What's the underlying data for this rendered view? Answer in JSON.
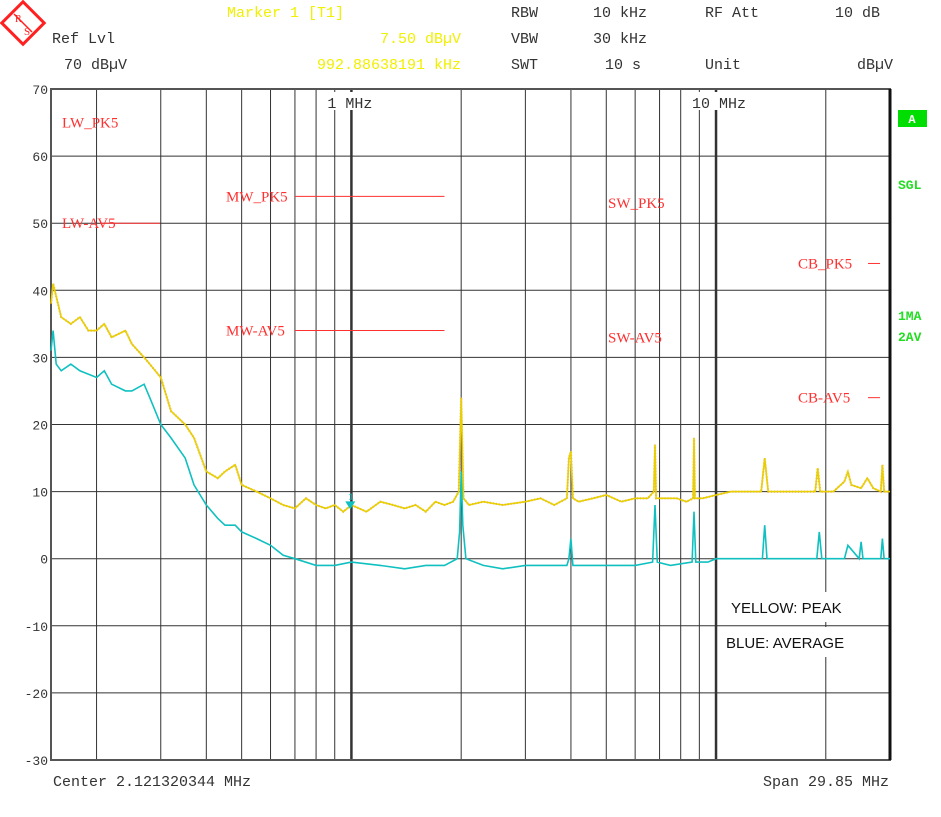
{
  "header": {
    "marker_title": "Marker 1 [T1]",
    "ref_lvl_label": "Ref Lvl",
    "ref_lvl_value": "70 dBµV",
    "marker_level": "7.50 dBµV",
    "marker_freq": "992.88638191 kHz",
    "rbw_label": "RBW",
    "rbw_value": "10 kHz",
    "vbw_label": "VBW",
    "vbw_value": "30 kHz",
    "swt_label": "SWT",
    "swt_value": "10 s",
    "rfatt_label": "RF Att",
    "rfatt_value": "10 dB",
    "unit_label": "Unit",
    "unit_value": "dBµV"
  },
  "side": {
    "screen": "A",
    "sweep": "SGL",
    "trace1": "1MA",
    "trace2": "2AV",
    "screen_color": "#00dd00"
  },
  "footer": {
    "center": "Center 2.121320344 MHz",
    "span": "Span 29.85 MHz"
  },
  "legend": {
    "peak": "YELLOW: PEAK",
    "average": "BLUE: AVERAGE"
  },
  "chart_data": {
    "type": "line",
    "x_scale": "log",
    "xlim_mhz": [
      0.15,
      30
    ],
    "ylim": [
      -30,
      70
    ],
    "grid": true,
    "y_ticks": [
      "70",
      "60",
      "50",
      "40",
      "30",
      "20",
      "10",
      "0",
      "-10",
      "-20",
      "-30"
    ],
    "x_tick_labels": [
      {
        "freq": 1,
        "label": "1 MHz"
      },
      {
        "freq": 10,
        "label": "10 MHz"
      }
    ],
    "colors": {
      "peak": "#e8d000",
      "average": "#10c0c0",
      "limit": "#ff3030",
      "grid": "#333333"
    },
    "marker": {
      "label": "1",
      "freq_mhz": 0.99288638191,
      "level": 7.5
    },
    "limit_lines": [
      {
        "label": "LW_PK5",
        "level": 65
      },
      {
        "label": "LW-AV5",
        "level": 50
      },
      {
        "label": "MW_PK5",
        "level": 54,
        "from_mhz": 0.7,
        "to_mhz": 1.8
      },
      {
        "label": "MW-AV5",
        "level": 34,
        "from_mhz": 0.7,
        "to_mhz": 1.8
      },
      {
        "label": "SW_PK5",
        "level": 53
      },
      {
        "label": "SW-AV5",
        "level": 33
      },
      {
        "label": "CB_PK5",
        "level": 44
      },
      {
        "label": "CB-AV5",
        "level": 24
      }
    ],
    "series": [
      {
        "key": "peak",
        "x": [
          0.15,
          0.152,
          0.16,
          0.17,
          0.18,
          0.19,
          0.2,
          0.21,
          0.22,
          0.24,
          0.25,
          0.27,
          0.28,
          0.3,
          0.32,
          0.35,
          0.37,
          0.4,
          0.43,
          0.45,
          0.48,
          0.5,
          0.55,
          0.6,
          0.65,
          0.7,
          0.75,
          0.8,
          0.85,
          0.9,
          0.95,
          1.0,
          1.1,
          1.2,
          1.3,
          1.4,
          1.5,
          1.6,
          1.7,
          1.8,
          1.9,
          1.97,
          2.0,
          2.03,
          2.1,
          2.3,
          2.6,
          3.0,
          3.3,
          3.6,
          3.9,
          3.95,
          4.0,
          4.05,
          4.2,
          4.6,
          5.0,
          5.5,
          6.0,
          6.5,
          6.75,
          6.8,
          6.85,
          7.2,
          7.8,
          8.3,
          8.65,
          8.7,
          8.75,
          9.2,
          10,
          11,
          12,
          13.3,
          13.6,
          13.9,
          15,
          17,
          18.7,
          19.0,
          19.3,
          21,
          22.5,
          23,
          23.5,
          25,
          26,
          27,
          28.3,
          28.6,
          28.9,
          30
        ],
        "y": [
          38,
          41,
          36,
          35,
          36,
          34,
          34,
          35,
          33,
          34,
          32,
          30,
          29,
          27,
          22,
          20,
          18,
          13,
          12,
          13,
          14,
          11,
          10,
          9,
          8,
          7.5,
          9,
          8,
          7.5,
          8,
          7,
          8,
          7,
          8.5,
          8,
          7.5,
          8,
          7,
          8.5,
          8,
          8.5,
          10,
          24,
          9,
          8,
          8.5,
          8,
          8.5,
          9,
          8,
          9,
          15,
          16,
          9,
          8.5,
          9,
          9.5,
          8.5,
          9,
          9,
          10,
          17,
          9,
          9,
          9,
          8.5,
          9,
          18,
          9,
          9,
          9.5,
          10,
          10,
          10,
          15,
          10,
          10,
          10,
          10,
          13.5,
          10,
          10,
          11.5,
          13,
          11,
          10.5,
          12,
          10.5,
          10,
          14,
          10,
          10
        ]
      },
      {
        "key": "average",
        "x": [
          0.15,
          0.152,
          0.155,
          0.16,
          0.17,
          0.18,
          0.2,
          0.21,
          0.22,
          0.24,
          0.25,
          0.27,
          0.28,
          0.3,
          0.32,
          0.35,
          0.37,
          0.4,
          0.43,
          0.45,
          0.48,
          0.5,
          0.55,
          0.6,
          0.65,
          0.7,
          0.8,
          0.9,
          1.0,
          1.2,
          1.4,
          1.6,
          1.8,
          1.95,
          1.98,
          2.0,
          2.02,
          2.06,
          2.3,
          2.6,
          3.0,
          3.5,
          3.9,
          3.95,
          4.0,
          4.05,
          4.2,
          5,
          6,
          6.7,
          6.8,
          6.9,
          7.5,
          8.6,
          8.7,
          8.8,
          9.5,
          10,
          11,
          12,
          13.4,
          13.6,
          13.8,
          15,
          17,
          18.9,
          19.2,
          19.5,
          21,
          22.5,
          23,
          24.7,
          25,
          25.3,
          27,
          28.3,
          28.6,
          28.9,
          30
        ],
        "y": [
          31,
          34,
          29,
          28,
          29,
          28,
          27,
          28,
          26,
          25,
          25,
          26,
          24,
          20,
          18,
          15,
          11,
          8,
          6,
          5,
          5,
          4,
          3,
          2,
          0.5,
          0,
          -1,
          -1,
          -0.5,
          -1,
          -1.5,
          -1,
          -1,
          0,
          4,
          13,
          5,
          0,
          -1,
          -1.5,
          -1,
          -1,
          -1,
          0,
          3,
          -1,
          -1,
          -1,
          -1,
          -0.5,
          8,
          -0.5,
          -1,
          -0.5,
          7,
          -0.5,
          -0.5,
          0,
          0,
          0,
          0,
          5,
          0,
          0,
          0,
          0,
          4,
          0,
          0,
          0,
          2,
          0,
          2.5,
          0,
          0,
          0,
          3,
          0,
          0
        ]
      }
    ]
  }
}
